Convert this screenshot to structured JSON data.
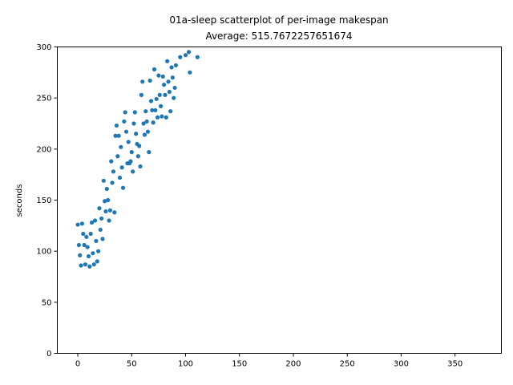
{
  "chart_data": {
    "type": "scatter",
    "title": "01a-sleep scatterplot of per-image makespan",
    "subtitle": "Average: 515.7672257651674",
    "xlabel": "",
    "ylabel": "seconds",
    "xlim": [
      -19,
      393
    ],
    "ylim": [
      0,
      300
    ],
    "x_ticks": [
      0,
      50,
      100,
      150,
      200,
      250,
      300,
      350
    ],
    "y_ticks": [
      0,
      50,
      100,
      150,
      200,
      250,
      300
    ],
    "grid": false,
    "legend": "none",
    "marker_color": "#1f77b4",
    "series": [
      {
        "x": [
          0,
          1,
          2,
          3,
          4,
          5,
          6,
          7,
          8,
          9,
          10,
          11,
          12,
          13,
          14,
          15,
          16,
          17,
          18,
          19,
          20,
          21,
          22,
          23,
          24,
          25,
          26,
          27,
          28,
          29,
          30,
          31,
          32,
          33,
          34,
          35,
          36,
          37,
          38,
          39,
          40,
          41,
          42,
          43,
          44,
          45,
          46,
          47,
          48,
          49,
          50,
          51,
          52,
          53,
          54,
          55,
          56,
          57,
          58,
          59,
          60,
          61,
          62,
          63,
          64,
          65,
          66,
          67,
          68,
          69,
          70,
          71,
          72,
          73,
          74,
          75,
          76,
          77,
          78,
          79,
          80,
          81,
          82,
          83,
          84,
          85,
          86,
          87,
          88,
          89,
          90,
          91,
          95,
          100,
          103,
          104,
          111
        ],
        "y": [
          126,
          106,
          96,
          86,
          127,
          117,
          106,
          87,
          114,
          104,
          95,
          85,
          117,
          128,
          98,
          87,
          130,
          110,
          90,
          100,
          142,
          121,
          132,
          112,
          169,
          149,
          139,
          161,
          150,
          130,
          140,
          188,
          167,
          178,
          138,
          213,
          223,
          193,
          213,
          172,
          202,
          182,
          162,
          227,
          236,
          217,
          186,
          207,
          186,
          188,
          197,
          178,
          225,
          236,
          215,
          205,
          193,
          203,
          183,
          253,
          266,
          225,
          214,
          237,
          227,
          217,
          197,
          267,
          247,
          238,
          226,
          278,
          238,
          249,
          231,
          272,
          253,
          242,
          232,
          271,
          263,
          253,
          231,
          286,
          266,
          256,
          237,
          280,
          270,
          250,
          260,
          282,
          290,
          292,
          295,
          275,
          290
        ]
      }
    ]
  }
}
